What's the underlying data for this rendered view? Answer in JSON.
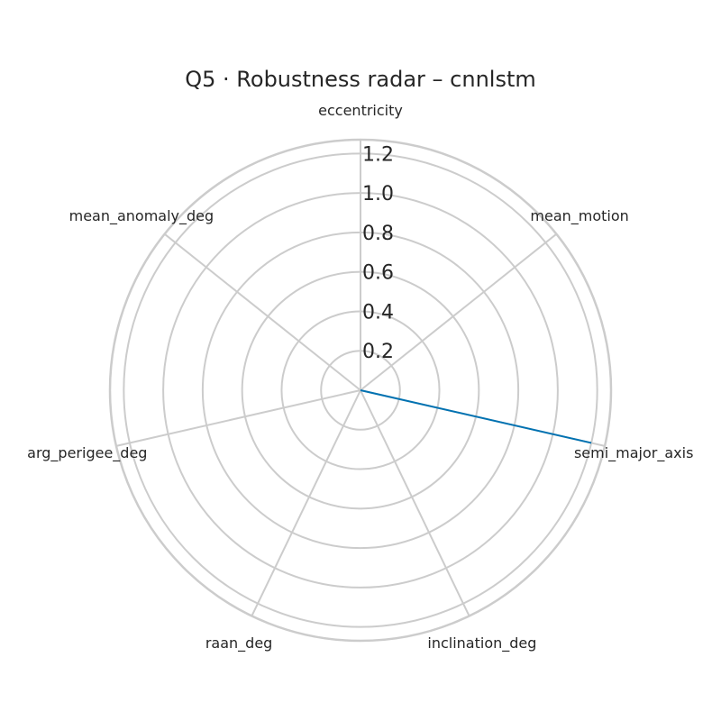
{
  "chart_data": {
    "type": "radar",
    "title": "Q5 · Robustness radar – cnnlstm",
    "axes": [
      "eccentricity",
      "mean_motion",
      "semi_major_axis",
      "inclination_deg",
      "raan_deg",
      "arg_perigee_deg",
      "mean_anomaly_deg"
    ],
    "r_ticks": [
      "0.2",
      "0.4",
      "0.6",
      "0.8",
      "1.0",
      "1.2"
    ],
    "r_tick_values": [
      0.2,
      0.4,
      0.6,
      0.8,
      1.0,
      1.2
    ],
    "rlim": [
      0,
      1.27
    ],
    "series": [
      {
        "values": [
          0.0,
          0.0,
          1.2,
          0.0,
          0.0,
          0.0,
          0.0
        ],
        "color": "#0072b2"
      }
    ],
    "grid": true
  }
}
